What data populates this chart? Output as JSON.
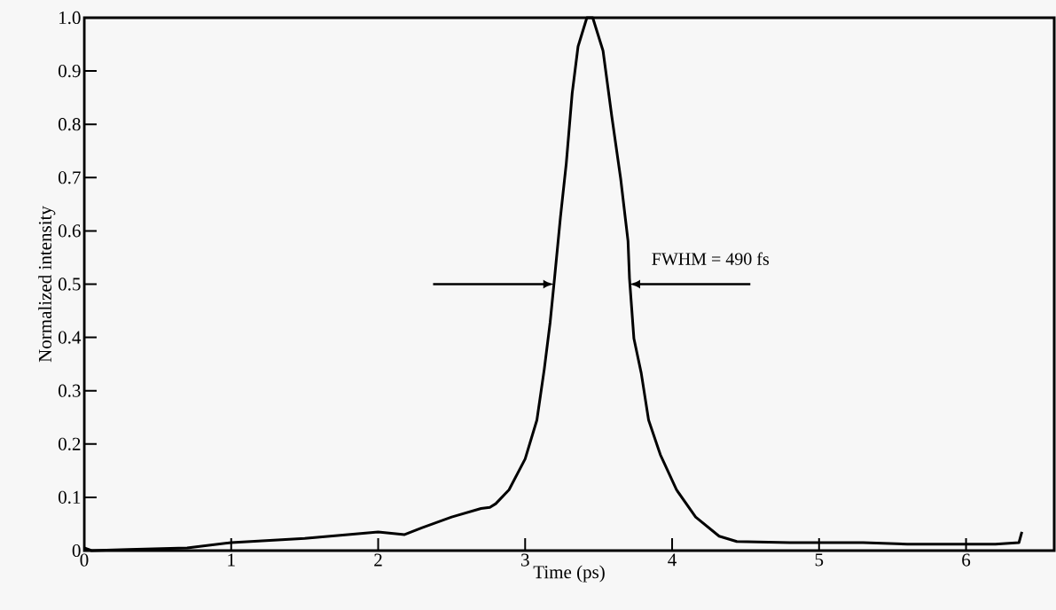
{
  "chart_data": {
    "type": "line",
    "xlabel": "Time (ps)",
    "ylabel": "Normalized intensity",
    "annotations": [
      {
        "text": "FWHM = 490 fs",
        "x": 3.71,
        "y": 0.5
      }
    ],
    "x": [
      0,
      0.05,
      0.3,
      0.7,
      1.0,
      1.5,
      2.0,
      2.18,
      2.3,
      2.5,
      2.7,
      2.76,
      2.8,
      2.89,
      3.0,
      3.08,
      3.13,
      3.17,
      3.2,
      3.24,
      3.28,
      3.32,
      3.36,
      3.42,
      3.46,
      3.53,
      3.59,
      3.65,
      3.7,
      3.71,
      3.74,
      3.79,
      3.84,
      3.92,
      4.03,
      4.16,
      4.32,
      4.44,
      4.8,
      5.3,
      5.6,
      6.0,
      6.2,
      6.36,
      6.38
    ],
    "series": [
      {
        "color": "#000000",
        "values": [
          0.005,
          0.0,
          0.002,
          0.005,
          0.015,
          0.023,
          0.035,
          0.03,
          0.043,
          0.063,
          0.079,
          0.081,
          0.088,
          0.114,
          0.172,
          0.245,
          0.34,
          0.428,
          0.511,
          0.625,
          0.727,
          0.858,
          0.946,
          1.0,
          1.0,
          0.938,
          0.814,
          0.698,
          0.581,
          0.511,
          0.398,
          0.333,
          0.245,
          0.18,
          0.114,
          0.063,
          0.027,
          0.017,
          0.015,
          0.015,
          0.012,
          0.012,
          0.012,
          0.015,
          0.035
        ]
      }
    ],
    "xlim": [
      0,
      6.6
    ],
    "ylim": [
      0,
      1
    ],
    "xticks": [
      0,
      1,
      2,
      3,
      4,
      5,
      6
    ],
    "yticks": [
      0,
      0.1,
      0.2,
      0.3,
      0.4,
      0.5,
      0.6,
      0.7,
      0.8,
      0.9,
      {
        "value": 1,
        "label": "1.0"
      }
    ],
    "grid": false,
    "legend": false,
    "marker": "none",
    "line_style": "solid"
  }
}
